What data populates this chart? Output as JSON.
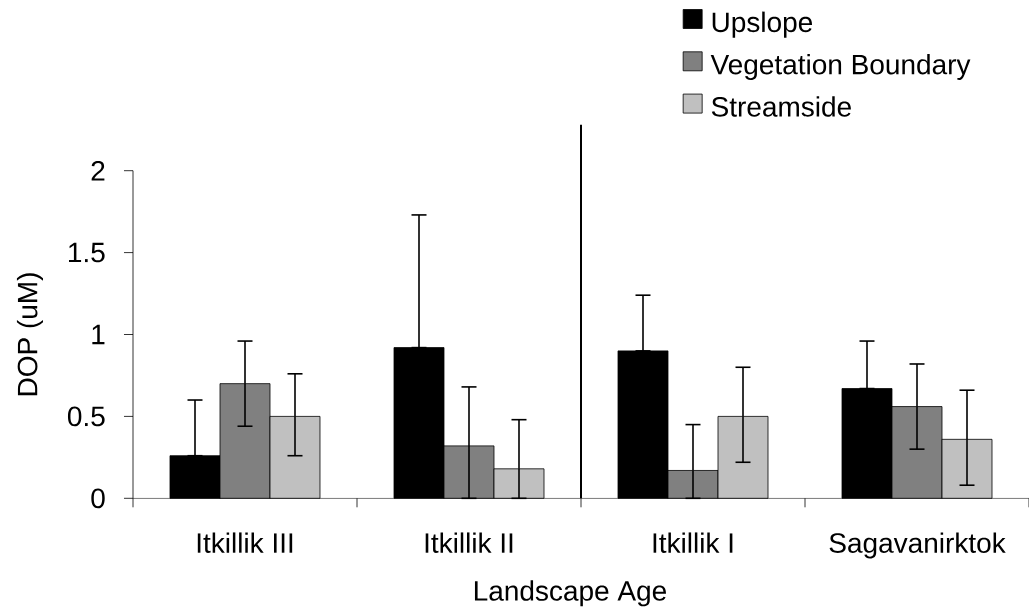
{
  "chart_data": {
    "type": "bar",
    "xlabel": "Landscape Age",
    "ylabel": "DOP (uM)",
    "categories": [
      "Itkillik III",
      "Itkillik II",
      "Itkillik I",
      "Sagavanirktok"
    ],
    "series": [
      {
        "name": "Upslope",
        "color": "#000000",
        "values": [
          0.26,
          0.92,
          0.9,
          0.67
        ],
        "errors": [
          [
            0.26,
            0.6
          ],
          [
            0.92,
            1.73
          ],
          [
            0.9,
            1.24
          ],
          [
            0.67,
            0.96
          ]
        ]
      },
      {
        "name": "Vegetation Boundary",
        "color": "#808080",
        "values": [
          0.7,
          0.32,
          0.17,
          0.56
        ],
        "errors": [
          [
            0.44,
            0.96
          ],
          [
            0,
            0.68
          ],
          [
            0,
            0.45
          ],
          [
            0.3,
            0.82
          ]
        ]
      },
      {
        "name": "Streamside",
        "color": "#c0c0c0",
        "values": [
          0.5,
          0.18,
          0.5,
          0.36
        ],
        "errors": [
          [
            0.26,
            0.76
          ],
          [
            0,
            0.48
          ],
          [
            0.22,
            0.8
          ],
          [
            0.08,
            0.66
          ]
        ]
      }
    ],
    "ylim": [
      0,
      2
    ],
    "yticks": [
      0,
      0.5,
      1,
      1.5,
      2
    ],
    "legend": "top right"
  }
}
